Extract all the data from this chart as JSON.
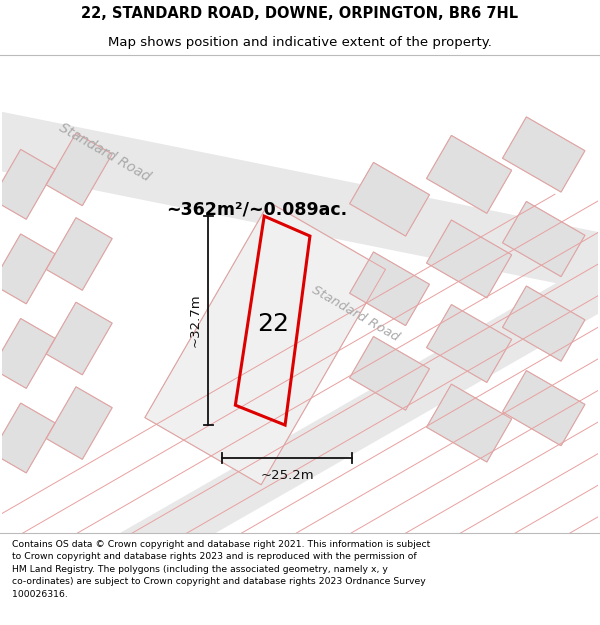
{
  "title_line1": "22, STANDARD ROAD, DOWNE, ORPINGTON, BR6 7HL",
  "title_line2": "Map shows position and indicative extent of the property.",
  "footer_text": "Contains OS data © Crown copyright and database right 2021. This information is subject to Crown copyright and database rights 2023 and is reproduced with the permission of HM Land Registry. The polygons (including the associated geometry, namely x, y co-ordinates) are subject to Crown copyright and database rights 2023 Ordnance Survey 100026316.",
  "area_label": "~362m²/~0.089ac.",
  "width_label": "~25.2m",
  "height_label": "~32.7m",
  "number_label": "22",
  "map_bg": "#f7f7f7",
  "road_fill": "#e8e8e8",
  "building_fill": "#e0e0e0",
  "building_edge": "#c8c8c8",
  "red_color": "#dd0000",
  "pink_line": "#e8a0a0",
  "road_label_color": "#aaaaaa",
  "dim_color": "#111111",
  "title_fs": 10.5,
  "subtitle_fs": 9.5,
  "footer_fs": 6.7,
  "area_fs": 12.5,
  "number_fs": 18,
  "dim_fs": 9.5
}
